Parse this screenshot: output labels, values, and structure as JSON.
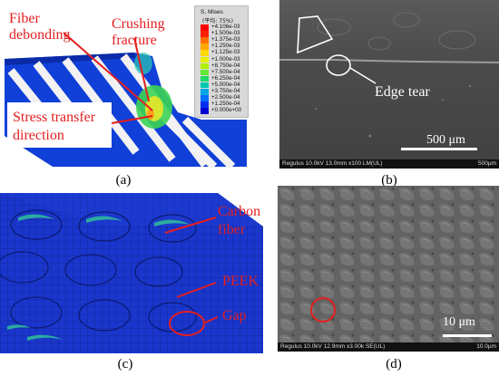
{
  "panel_a": {
    "label_fiber_debonding": [
      "Fiber",
      "debonding"
    ],
    "label_crushing_fracture": [
      "Crushing",
      "fracture"
    ],
    "label_stress_transfer": [
      "Stress transfer",
      "direction"
    ],
    "legend": {
      "title": "S, Mises",
      "subtitle": "(平均: 75%)",
      "values": [
        "+4.106e-03",
        "+1.500e-03",
        "+1.375e-03",
        "+1.250e-03",
        "+1.125e-03",
        "+1.000e-03",
        "+8.750e-04",
        "+7.500e-04",
        "+6.250e-04",
        "+5.000e-04",
        "+3.750e-04",
        "+2.500e-04",
        "+1.250e-04",
        "+0.000e+00"
      ],
      "colors": [
        "#ff0000",
        "#ff2000",
        "#ff7000",
        "#ffa800",
        "#ffd800",
        "#e6f000",
        "#b0f000",
        "#60e830",
        "#20d868",
        "#00c8b0",
        "#00a8e8",
        "#0070ff",
        "#0030f0",
        "#0000d0"
      ]
    },
    "caption": "(a)"
  },
  "panel_b": {
    "label_edge_tear": "Edge tear",
    "scale_label": "500 μm",
    "info_left": "Regulus 10.0kV 13.0mm x100 LM(UL)",
    "info_right": "500μm",
    "caption": "(b)"
  },
  "panel_c": {
    "label_carbon_fiber": [
      "Carbon",
      "fiber"
    ],
    "label_peek": "PEEK",
    "label_gap": "Gap",
    "caption": "(c)"
  },
  "panel_d": {
    "scale_label": "10 μm",
    "info_left": "Regulus 10.0kV 12.9mm x3.00k SE(UL)",
    "info_right": "10.0μm",
    "caption": "(d)"
  }
}
